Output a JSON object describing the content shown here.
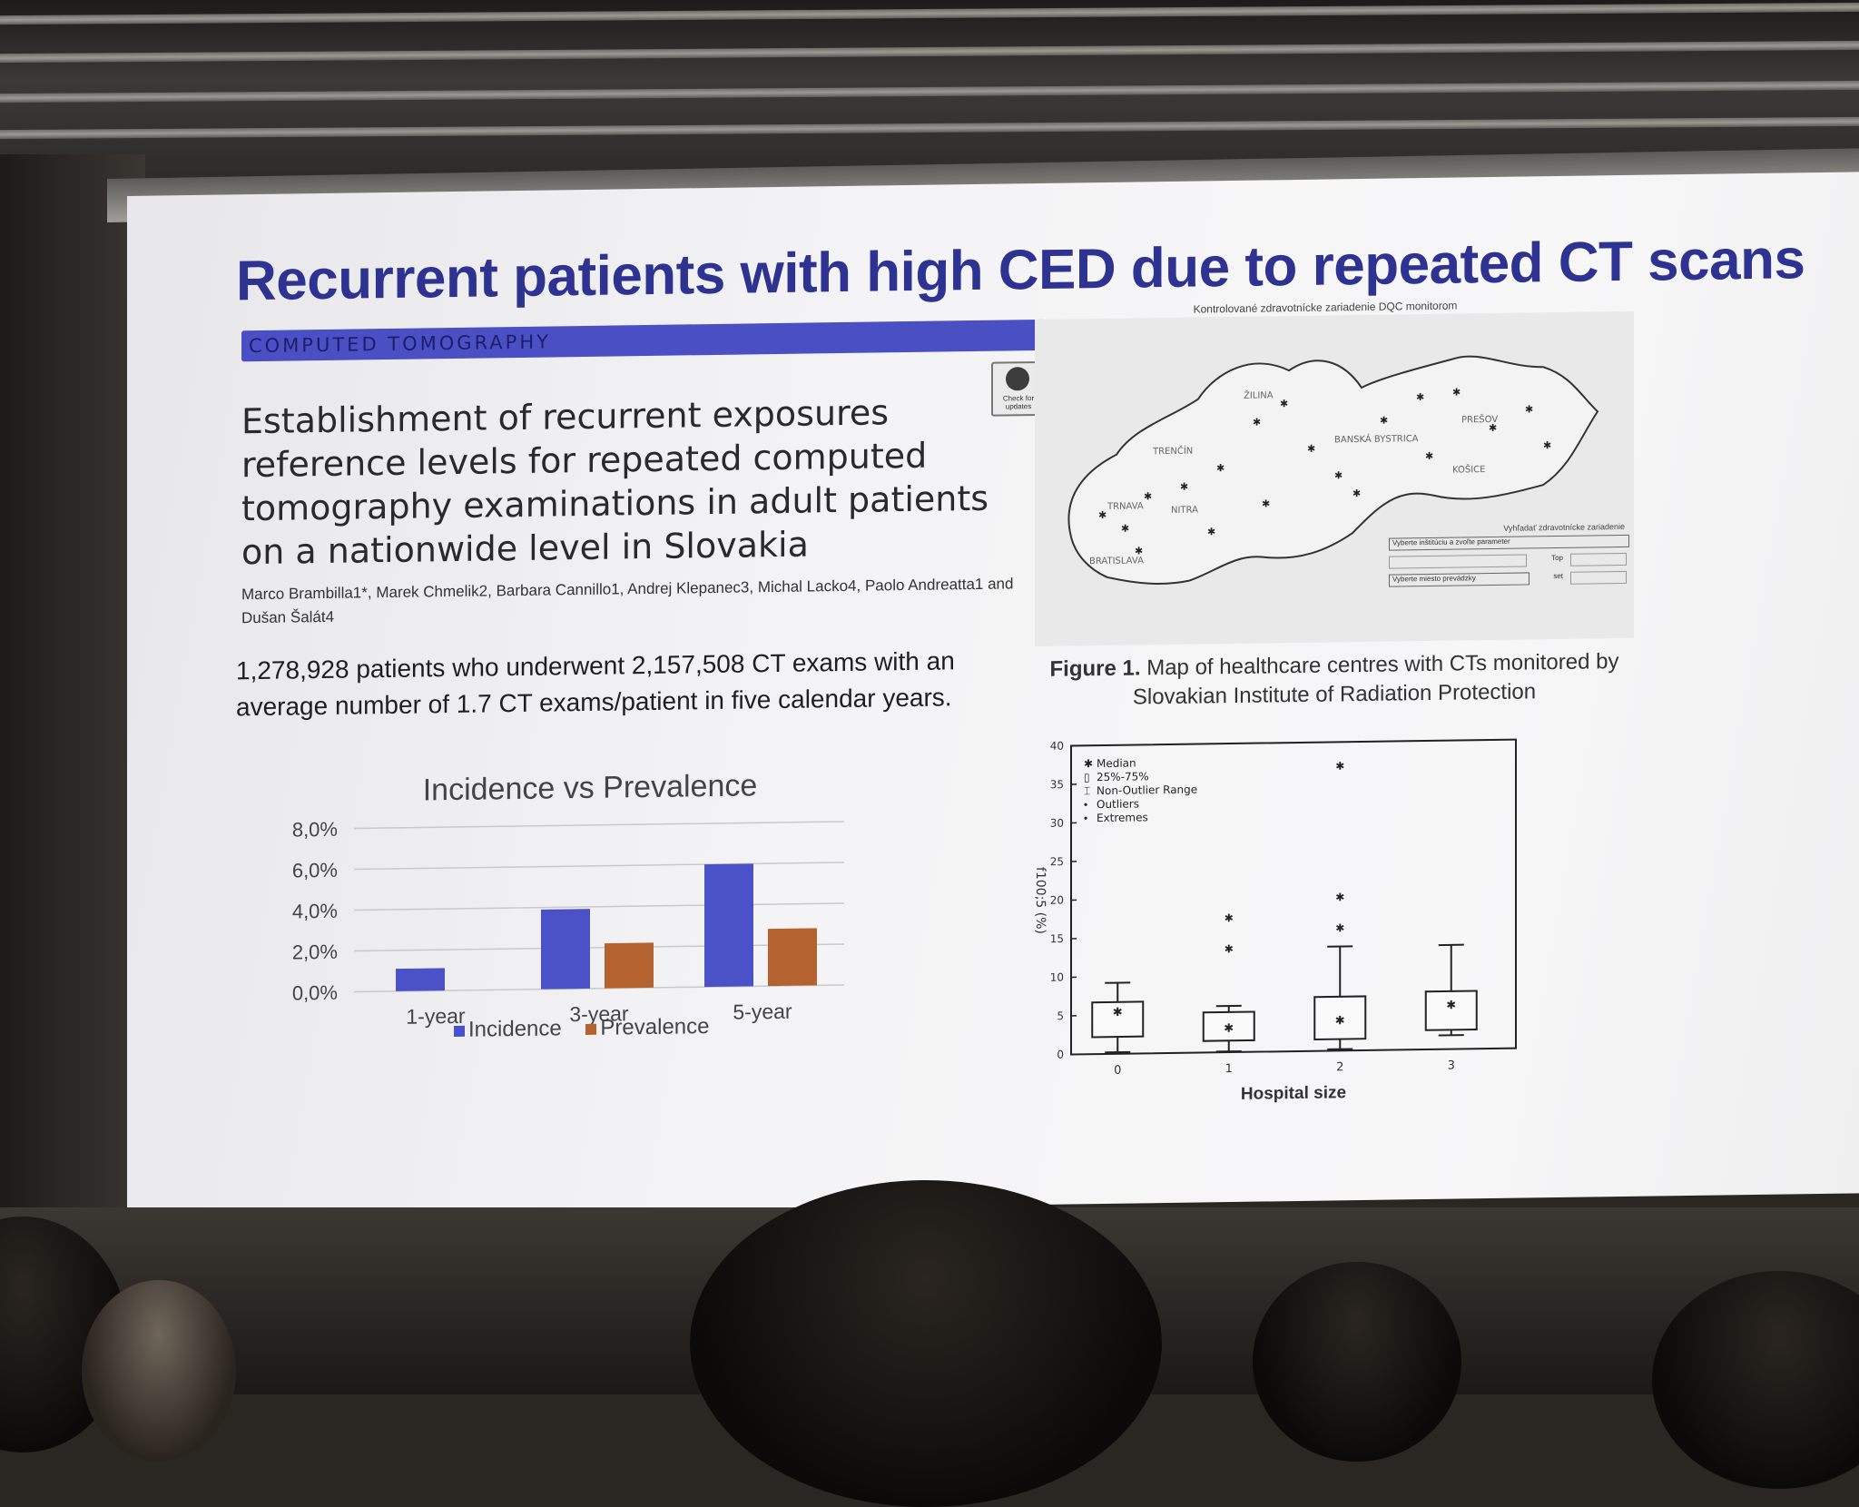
{
  "slide": {
    "title": "Recurrent patients with high CED due to repeated CT scans",
    "section_band": "COMPUTED TOMOGRAPHY",
    "crossmark_label": "Check for updates",
    "paper_title": "Establishment of recurrent exposures reference levels for repeated computed tomography examinations in adult patients on a nationwide level in Slovakia",
    "authors": "Marco Brambilla1*, Marek Chmelik2, Barbara Cannillo1, Andrej Klepanec3, Michal Lacko4, Paolo Andreatta1 and Dušan Šalát4",
    "summary": "1,278,928 patients who underwent 2,157,508 CT exams with an average number of 1.7 CT exams/patient in five calendar years."
  },
  "map": {
    "title": "Kontrolované zdravotnícke zariadenie DQC monitorom",
    "regions": [
      "BRATISLAVA",
      "TRNAVA",
      "NITRA",
      "TRENČÍN",
      "ŽILINA",
      "BANSKÁ BYSTRICA",
      "PREŠOV",
      "KOŠICE"
    ],
    "panel_label": "Vyhľadať zdravotnícke zariadenie",
    "panel_select": "Vyberte inštitúciu a zvoľte parameter",
    "panel_select2": "Vyberte miesto prevádzky",
    "panel_field_top": "Top",
    "panel_field_set": "set",
    "caption_bold": "Figure 1.",
    "caption": "Map of healthcare centres with CTs monitored by Slovakian Institute of Radiation Protection"
  },
  "chart_data": [
    {
      "type": "bar",
      "title": "Incidence vs Prevalence",
      "categories": [
        "1-year",
        "3-year",
        "5-year"
      ],
      "series": [
        {
          "name": "Incidence",
          "values": [
            1.1,
            3.9,
            6.0
          ],
          "color": "#4b52c8"
        },
        {
          "name": "Prevalence",
          "values": [
            0.0,
            2.2,
            2.8
          ],
          "color": "#b46230"
        }
      ],
      "yticks": [
        "0,0%",
        "2,0%",
        "4,0%",
        "6,0%",
        "8,0%"
      ],
      "ylim": [
        0,
        8
      ],
      "grid": true,
      "legend_position": "bottom"
    },
    {
      "type": "box",
      "xlabel": "Hospital size",
      "ylabel": "f100;5 (%)",
      "categories": [
        "0",
        "1",
        "2",
        "3"
      ],
      "ylim": [
        0,
        40
      ],
      "yticks": [
        "0",
        "5",
        "10",
        "15",
        "20",
        "25",
        "30",
        "35",
        "40"
      ],
      "ytick_values": [
        0,
        5,
        10,
        15,
        20,
        25,
        30,
        35,
        40
      ],
      "boxes": [
        {
          "whisker_low": 0.2,
          "q1": 2.2,
          "median": 5.5,
          "q3": 6.7,
          "whisker_high": 9.2,
          "outliers": []
        },
        {
          "whisker_low": 0.1,
          "q1": 1.5,
          "median": 3.2,
          "q3": 5.2,
          "whisker_high": 6.0,
          "outliers": [
            13.5,
            17.5
          ]
        },
        {
          "whisker_low": 0.2,
          "q1": 1.5,
          "median": 4.0,
          "q3": 7.0,
          "whisker_high": 13.5,
          "outliers": [
            16.0,
            20.0,
            37.0
          ]
        },
        {
          "whisker_low": 1.8,
          "q1": 2.5,
          "median": 5.8,
          "q3": 7.5,
          "whisker_high": 13.5,
          "outliers": []
        }
      ],
      "legend": [
        "Median",
        "25%-75%",
        "Non-Outlier Range",
        "Outliers",
        "Extremes"
      ],
      "legend_position": "top-left"
    }
  ]
}
